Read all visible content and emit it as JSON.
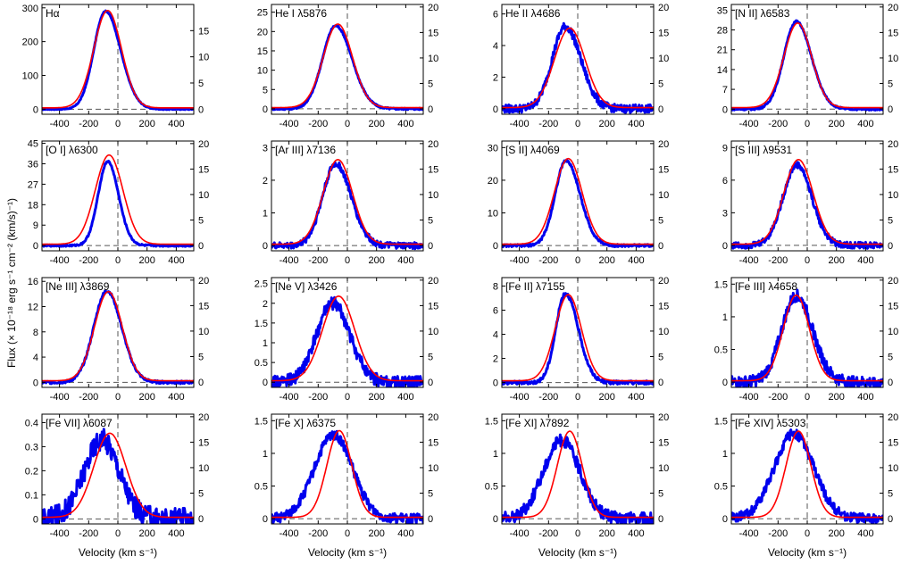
{
  "figure": {
    "ylabel": "Flux (× 10⁻¹⁸ erg s⁻¹ cm⁻² (km/s)⁻¹)",
    "xlabel": "Velocity (km s⁻¹)"
  },
  "chart_data": [
    {
      "type": "line",
      "title": "Hα",
      "xlim": [
        -520,
        520
      ],
      "xticks": [
        -400,
        -200,
        0,
        200,
        400
      ],
      "yticks_left": [
        0,
        100,
        200,
        300
      ],
      "ylim_left": [
        -15,
        310
      ],
      "yticks_right": [
        0,
        5,
        10,
        15
      ],
      "ylim_right": [
        -0.97,
        20
      ],
      "series": [
        {
          "color": "#0000ee",
          "peak_left": 290,
          "center": -85,
          "width": 80,
          "noise": 0.005,
          "skew": 0.5
        },
        {
          "color": "#ff0000",
          "peak_right": 18.6,
          "center": -70,
          "width": 95
        }
      ]
    },
    {
      "type": "line",
      "title": "He I λ5876",
      "xlim": [
        -520,
        520
      ],
      "xticks": [
        -400,
        -200,
        0,
        200,
        400
      ],
      "yticks_left": [
        0,
        5,
        10,
        15,
        20,
        25
      ],
      "ylim_left": [
        -1.4,
        27
      ],
      "yticks_right": [
        0,
        5,
        10,
        15,
        20
      ],
      "ylim_right": [
        -1.05,
        20.5
      ],
      "series": [
        {
          "color": "#0000ee",
          "peak_left": 21.5,
          "center": -80,
          "width": 90,
          "noise": 0.01,
          "skew": 0.4
        },
        {
          "color": "#ff0000",
          "peak_right": 16.4,
          "center": -65,
          "width": 100
        }
      ]
    },
    {
      "type": "line",
      "title": "He II λ4686",
      "xlim": [
        -520,
        520
      ],
      "xticks": [
        -400,
        -200,
        0,
        200,
        400
      ],
      "yticks_left": [
        0,
        2,
        4,
        6
      ],
      "ylim_left": [
        -0.35,
        6.6
      ],
      "yticks_right": [
        0,
        5,
        10,
        15,
        20
      ],
      "ylim_right": [
        -1.05,
        20.5
      ],
      "series": [
        {
          "color": "#0000ee",
          "peak_left": 5.2,
          "center": -85,
          "width": 90,
          "noise": 0.05,
          "skew": 0.3
        },
        {
          "color": "#ff0000",
          "peak_right": 15.6,
          "center": -55,
          "width": 105
        }
      ]
    },
    {
      "type": "line",
      "title": "[N II] λ6583",
      "xlim": [
        -520,
        520
      ],
      "xticks": [
        -400,
        -200,
        0,
        200,
        400
      ],
      "yticks_left": [
        0,
        7,
        14,
        21,
        28,
        35
      ],
      "ylim_left": [
        -1.8,
        37
      ],
      "yticks_right": [
        0,
        5,
        10,
        15,
        20
      ],
      "ylim_right": [
        -1.05,
        20.5
      ],
      "series": [
        {
          "color": "#0000ee",
          "peak_left": 31,
          "center": -75,
          "width": 85,
          "noise": 0.01,
          "skew": 0.35
        },
        {
          "color": "#ff0000",
          "peak_right": 16.6,
          "center": -65,
          "width": 95
        }
      ]
    },
    {
      "type": "line",
      "title": "[O I] λ6300",
      "xlim": [
        -520,
        520
      ],
      "xticks": [
        -400,
        -200,
        0,
        200,
        400
      ],
      "yticks_left": [
        0,
        9,
        18,
        27,
        36,
        45
      ],
      "ylim_left": [
        -2.3,
        46
      ],
      "yticks_right": [
        0,
        5,
        10,
        15,
        20
      ],
      "ylim_right": [
        -1.05,
        20.5
      ],
      "series": [
        {
          "color": "#0000ee",
          "peak_left": 37,
          "center": -70,
          "width": 65,
          "noise": 0.01,
          "skew": 0.25
        },
        {
          "color": "#ff0000",
          "peak_right": 17.5,
          "center": -60,
          "width": 95
        }
      ]
    },
    {
      "type": "line",
      "title": "[Ar III] λ7136",
      "xlim": [
        -520,
        520
      ],
      "xticks": [
        -400,
        -200,
        0,
        200,
        400
      ],
      "yticks_left": [
        0,
        1,
        2,
        3
      ],
      "ylim_left": [
        -0.16,
        3.2
      ],
      "yticks_right": [
        0,
        5,
        10,
        15,
        20
      ],
      "ylim_right": [
        -1.05,
        20.5
      ],
      "series": [
        {
          "color": "#0000ee",
          "peak_left": 2.5,
          "center": -80,
          "width": 90,
          "noise": 0.04,
          "skew": 0.3
        },
        {
          "color": "#ff0000",
          "peak_right": 16.6,
          "center": -65,
          "width": 100
        }
      ]
    },
    {
      "type": "line",
      "title": "[S II] λ4069",
      "xlim": [
        -520,
        520
      ],
      "xticks": [
        -400,
        -200,
        0,
        200,
        400
      ],
      "yticks_left": [
        0,
        10,
        20,
        30
      ],
      "ylim_left": [
        -1.6,
        32
      ],
      "yticks_right": [
        0,
        5,
        10,
        15,
        20
      ],
      "ylim_right": [
        -1.05,
        20.5
      ],
      "series": [
        {
          "color": "#0000ee",
          "peak_left": 26,
          "center": -80,
          "width": 75,
          "noise": 0.015,
          "skew": 0.45
        },
        {
          "color": "#ff0000",
          "peak_right": 16.8,
          "center": -65,
          "width": 95
        }
      ]
    },
    {
      "type": "line",
      "title": "[S III] λ9531",
      "xlim": [
        -520,
        520
      ],
      "xticks": [
        -400,
        -200,
        0,
        200,
        400
      ],
      "yticks_left": [
        0,
        3,
        6,
        9
      ],
      "ylim_left": [
        -0.5,
        9.6
      ],
      "yticks_right": [
        0,
        5,
        10,
        15,
        20
      ],
      "ylim_right": [
        -1.05,
        20.5
      ],
      "series": [
        {
          "color": "#0000ee",
          "peak_left": 7.4,
          "center": -70,
          "width": 95,
          "noise": 0.04,
          "skew": 0.1
        },
        {
          "color": "#ff0000",
          "peak_right": 16.6,
          "center": -60,
          "width": 100
        }
      ]
    },
    {
      "type": "line",
      "title": "[Ne III] λ3869",
      "xlim": [
        -520,
        520
      ],
      "xticks": [
        -400,
        -200,
        0,
        200,
        400
      ],
      "yticks_left": [
        0,
        4,
        8,
        12,
        16
      ],
      "ylim_left": [
        -0.8,
        16.6
      ],
      "yticks_right": [
        0,
        5,
        10,
        15,
        20
      ],
      "ylim_right": [
        -1.05,
        20.5
      ],
      "series": [
        {
          "color": "#0000ee",
          "peak_left": 14.5,
          "center": -75,
          "width": 90,
          "noise": 0.015,
          "skew": 0.2
        },
        {
          "color": "#ff0000",
          "peak_right": 17.5,
          "center": -65,
          "width": 95
        }
      ]
    },
    {
      "type": "line",
      "title": "[Ne V] λ3426",
      "xlim": [
        -520,
        520
      ],
      "xticks": [
        -400,
        -200,
        0,
        200,
        400
      ],
      "yticks_left": [
        0,
        0.5,
        1,
        1.5,
        2,
        2.5
      ],
      "ylim_left": [
        -0.13,
        2.65
      ],
      "yticks_right": [
        0,
        5,
        10,
        15,
        20
      ],
      "ylim_right": [
        -1.05,
        20.5
      ],
      "series": [
        {
          "color": "#0000ee",
          "peak_left": 2.0,
          "center": -100,
          "width": 110,
          "noise": 0.08,
          "skew": 0.1
        },
        {
          "color": "#ff0000",
          "peak_right": 16.6,
          "center": -60,
          "width": 110
        }
      ]
    },
    {
      "type": "line",
      "title": "[Fe II] λ7155",
      "xlim": [
        -520,
        520
      ],
      "xticks": [
        -400,
        -200,
        0,
        200,
        400
      ],
      "yticks_left": [
        0,
        2,
        4,
        6,
        8
      ],
      "ylim_left": [
        -0.4,
        8.7
      ],
      "yticks_right": [
        0,
        5,
        10,
        15,
        20
      ],
      "ylim_right": [
        -1.05,
        20.5
      ],
      "series": [
        {
          "color": "#0000ee",
          "peak_left": 7.4,
          "center": -85,
          "width": 65,
          "noise": 0.02,
          "skew": 0.6
        },
        {
          "color": "#ff0000",
          "peak_right": 16.9,
          "center": -65,
          "width": 90
        }
      ]
    },
    {
      "type": "line",
      "title": "[Fe III] λ4658",
      "xlim": [
        -520,
        520
      ],
      "xticks": [
        -400,
        -200,
        0,
        200,
        400
      ],
      "yticks_left": [
        0,
        0.5,
        1,
        1.5
      ],
      "ylim_left": [
        -0.08,
        1.6
      ],
      "yticks_right": [
        0,
        5,
        10,
        15,
        20
      ],
      "ylim_right": [
        -1.05,
        20.5
      ],
      "series": [
        {
          "color": "#0000ee",
          "peak_left": 1.32,
          "center": -75,
          "width": 100,
          "noise": 0.07,
          "skew": 0.2
        },
        {
          "color": "#ff0000",
          "peak_right": 16.8,
          "center": -75,
          "width": 90
        }
      ]
    },
    {
      "type": "line",
      "title": "[Fe VII] λ6087",
      "xlim": [
        -520,
        520
      ],
      "xticks": [
        -400,
        -200,
        0,
        200,
        400
      ],
      "yticks_left": [
        0,
        0.1,
        0.2,
        0.3,
        0.4
      ],
      "ylim_left": [
        -0.021,
        0.435
      ],
      "yticks_right": [
        0,
        5,
        10,
        15,
        20
      ],
      "ylim_right": [
        -1.05,
        20.5
      ],
      "series": [
        {
          "color": "#0000ee",
          "peak_left": 0.33,
          "center": -110,
          "width": 120,
          "noise": 0.14,
          "skew": 0.0
        },
        {
          "color": "#ff0000",
          "peak_right": 16.5,
          "center": -55,
          "width": 110
        }
      ]
    },
    {
      "type": "line",
      "title": "[Fe X] λ6375",
      "xlim": [
        -520,
        520
      ],
      "xticks": [
        -400,
        -200,
        0,
        200,
        400
      ],
      "yticks_left": [
        0,
        0.5,
        1,
        1.5
      ],
      "ylim_left": [
        -0.08,
        1.6
      ],
      "yticks_right": [
        0,
        5,
        10,
        15,
        20
      ],
      "ylim_right": [
        -1.05,
        20.5
      ],
      "series": [
        {
          "color": "#0000ee",
          "peak_left": 1.28,
          "center": -95,
          "width": 130,
          "noise": 0.06,
          "skew": 0.0
        },
        {
          "color": "#ff0000",
          "peak_right": 17.0,
          "center": -55,
          "width": 85
        }
      ]
    },
    {
      "type": "line",
      "title": "[Fe XI] λ7892",
      "xlim": [
        -520,
        520
      ],
      "xticks": [
        -400,
        -200,
        0,
        200,
        400
      ],
      "yticks_left": [
        0,
        0.5,
        1,
        1.5
      ],
      "ylim_left": [
        -0.08,
        1.6
      ],
      "yticks_right": [
        0,
        5,
        10,
        15,
        20
      ],
      "ylim_right": [
        -1.05,
        20.5
      ],
      "series": [
        {
          "color": "#0000ee",
          "peak_left": 1.2,
          "center": -110,
          "width": 125,
          "noise": 0.08,
          "skew": 0.0
        },
        {
          "color": "#ff0000",
          "peak_right": 16.9,
          "center": -55,
          "width": 85
        }
      ]
    },
    {
      "type": "line",
      "title": "[Fe XIV] λ5303",
      "xlim": [
        -520,
        520
      ],
      "xticks": [
        -400,
        -200,
        0,
        200,
        400
      ],
      "yticks_left": [
        0,
        0.5,
        1,
        1.5
      ],
      "ylim_left": [
        -0.08,
        1.6
      ],
      "yticks_right": [
        0,
        5,
        10,
        15,
        20
      ],
      "ylim_right": [
        -1.05,
        20.5
      ],
      "series": [
        {
          "color": "#0000ee",
          "peak_left": 1.3,
          "center": -90,
          "width": 135,
          "noise": 0.06,
          "skew": 0.0
        },
        {
          "color": "#ff0000",
          "peak_right": 16.9,
          "center": -60,
          "width": 85
        }
      ]
    }
  ]
}
